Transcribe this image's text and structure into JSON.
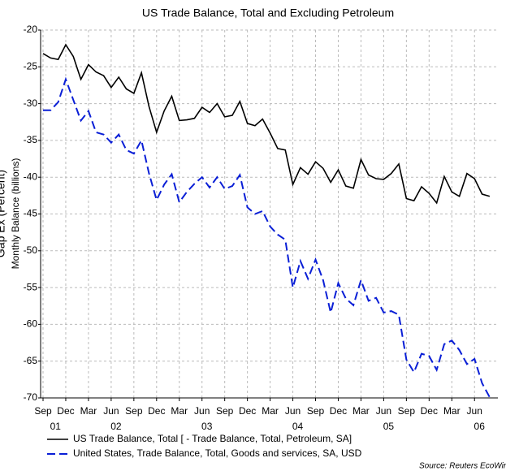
{
  "chart_data": {
    "type": "line",
    "title": "US Trade Balance, Total and Excluding Petroleum",
    "y_label": "Monthly Balance (billions)",
    "y2_label": "Gap Ex (Percent)",
    "source": "Source: Reuters EcoWin",
    "x": [
      "2001-09",
      "2001-10",
      "2001-11",
      "2001-12",
      "2002-01",
      "2002-02",
      "2002-03",
      "2002-04",
      "2002-05",
      "2002-06",
      "2002-07",
      "2002-08",
      "2002-09",
      "2002-10",
      "2002-11",
      "2002-12",
      "2003-01",
      "2003-02",
      "2003-03",
      "2003-04",
      "2003-05",
      "2003-06",
      "2003-07",
      "2003-08",
      "2003-09",
      "2003-10",
      "2003-11",
      "2003-12",
      "2004-01",
      "2004-02",
      "2004-03",
      "2004-04",
      "2004-05",
      "2004-06",
      "2004-07",
      "2004-08",
      "2004-09",
      "2004-10",
      "2004-11",
      "2004-12",
      "2005-01",
      "2005-02",
      "2005-03",
      "2005-04",
      "2005-05",
      "2005-06",
      "2005-07",
      "2005-08",
      "2005-09",
      "2005-10",
      "2005-11",
      "2005-12",
      "2006-01",
      "2006-02",
      "2006-03",
      "2006-04",
      "2006-05",
      "2006-06",
      "2006-07",
      "2006-08"
    ],
    "series": [
      {
        "name": "US Trade Balance, Total [ - Trade Balance, Total, Petroleum, SA]",
        "color": "#000000",
        "dash": false,
        "values": [
          -23.2,
          -23.8,
          -24.0,
          -22.0,
          -23.6,
          -26.7,
          -24.7,
          -25.7,
          -26.2,
          -27.8,
          -26.4,
          -28.0,
          -28.6,
          -25.8,
          -30.4,
          -33.9,
          -31.0,
          -29.0,
          -32.3,
          -32.2,
          -32.0,
          -30.5,
          -31.2,
          -30.0,
          -31.8,
          -31.6,
          -29.7,
          -32.7,
          -33.0,
          -32.1,
          -34.0,
          -36.1,
          -36.3,
          -41.0,
          -38.7,
          -39.6,
          -37.9,
          -38.8,
          -40.7,
          -39.0,
          -41.2,
          -41.5,
          -37.6,
          -39.7,
          -40.2,
          -40.3,
          -39.5,
          -38.2,
          -42.9,
          -43.2,
          -41.3,
          -42.2,
          -43.5,
          -39.9,
          -42.0,
          -42.6,
          -39.5,
          -40.2,
          -42.3,
          -42.6
        ]
      },
      {
        "name": "United States, Trade Balance, Total, Goods and services, SA, USD",
        "color": "#0a1fd6",
        "dash": true,
        "values": [
          -30.9,
          -30.9,
          -29.8,
          -26.7,
          -29.5,
          -32.3,
          -31.0,
          -33.9,
          -34.2,
          -35.3,
          -34.2,
          -36.3,
          -36.8,
          -35.0,
          -39.5,
          -43.1,
          -41.0,
          -39.6,
          -43.4,
          -42.0,
          -40.9,
          -40.0,
          -41.4,
          -40.0,
          -41.6,
          -41.2,
          -39.7,
          -44.1,
          -45.0,
          -44.6,
          -46.7,
          -47.8,
          -48.5,
          -55.0,
          -51.4,
          -53.8,
          -51.2,
          -54.0,
          -58.4,
          -54.4,
          -56.5,
          -57.4,
          -54.0,
          -56.8,
          -56.4,
          -58.4,
          -58.2,
          -58.7,
          -64.8,
          -66.5,
          -64.0,
          -64.3,
          -66.2,
          -62.7,
          -62.2,
          -63.5,
          -65.4,
          -64.7,
          -68.0,
          -69.9
        ]
      }
    ],
    "ylim": [
      -70,
      -20
    ],
    "yticks": [
      -20,
      -25,
      -30,
      -35,
      -40,
      -45,
      -50,
      -55,
      -60,
      -65,
      -70
    ],
    "xticks": [
      {
        "value": "2001-09",
        "label": "Sep"
      },
      {
        "value": "2001-12",
        "label": "Dec"
      },
      {
        "value": "2002-03",
        "label": "Mar"
      },
      {
        "value": "2002-06",
        "label": "Jun"
      },
      {
        "value": "2002-09",
        "label": "Sep"
      },
      {
        "value": "2002-12",
        "label": "Dec"
      },
      {
        "value": "2003-03",
        "label": "Mar"
      },
      {
        "value": "2003-06",
        "label": "Jun"
      },
      {
        "value": "2003-09",
        "label": "Sep"
      },
      {
        "value": "2003-12",
        "label": "Dec"
      },
      {
        "value": "2004-03",
        "label": "Mar"
      },
      {
        "value": "2004-06",
        "label": "Jun"
      },
      {
        "value": "2004-09",
        "label": "Sep"
      },
      {
        "value": "2004-12",
        "label": "Dec"
      },
      {
        "value": "2005-03",
        "label": "Mar"
      },
      {
        "value": "2005-06",
        "label": "Jun"
      },
      {
        "value": "2005-09",
        "label": "Sep"
      },
      {
        "value": "2005-12",
        "label": "Dec"
      },
      {
        "value": "2006-03",
        "label": "Mar"
      },
      {
        "value": "2006-06",
        "label": "Jun"
      }
    ],
    "year_ticks": [
      {
        "value": "2001-10",
        "label": "01"
      },
      {
        "value": "2002-06",
        "label": "02"
      },
      {
        "value": "2003-06",
        "label": "03"
      },
      {
        "value": "2004-06",
        "label": "04"
      },
      {
        "value": "2005-06",
        "label": "05"
      },
      {
        "value": "2006-06",
        "label": "06"
      }
    ],
    "grid": true
  }
}
